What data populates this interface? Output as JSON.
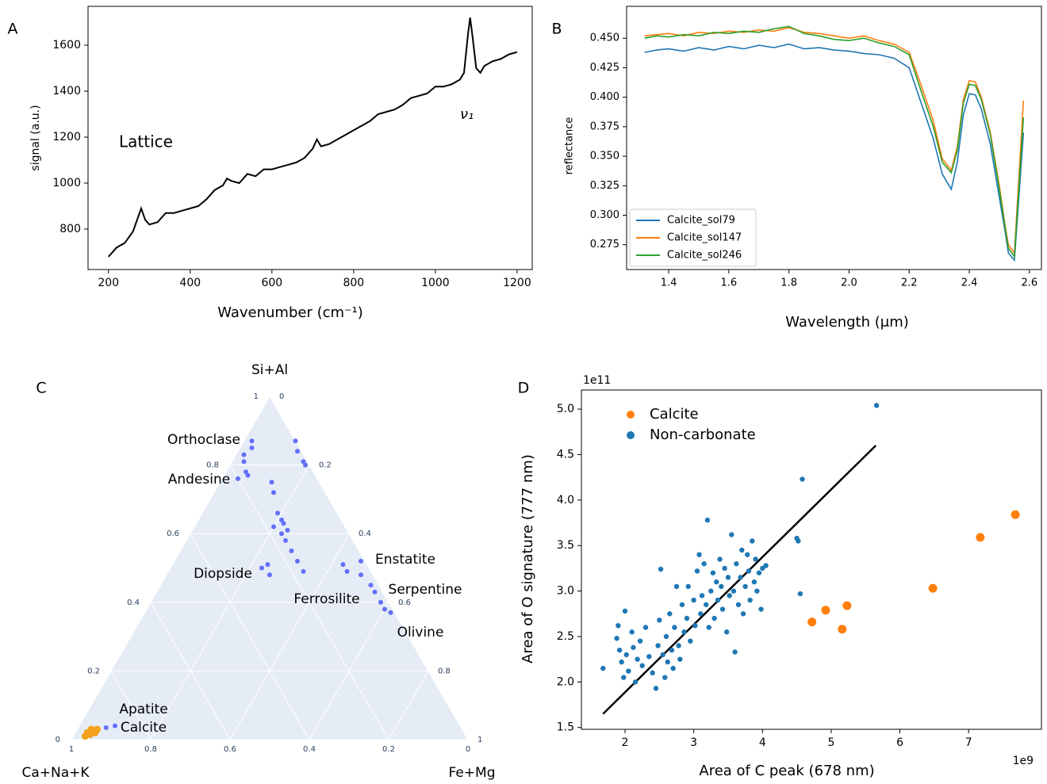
{
  "chart_data": [
    {
      "type": "line",
      "panel_label": "A",
      "xlabel": "Wavenumber (cm⁻¹)",
      "ylabel": "signal (a.u.)",
      "annotations": [
        "Lattice",
        "ν₁"
      ],
      "color": "#000000",
      "x": [
        200,
        220,
        240,
        260,
        280,
        290,
        300,
        320,
        340,
        360,
        380,
        400,
        420,
        440,
        460,
        480,
        490,
        500,
        520,
        540,
        560,
        580,
        600,
        620,
        640,
        660,
        680,
        700,
        710,
        720,
        740,
        760,
        780,
        800,
        820,
        840,
        860,
        880,
        900,
        920,
        940,
        960,
        980,
        1000,
        1020,
        1040,
        1060,
        1070,
        1080,
        1085,
        1090,
        1100,
        1110,
        1120,
        1140,
        1160,
        1180,
        1200
      ],
      "values": [
        680,
        720,
        740,
        790,
        890,
        840,
        820,
        830,
        870,
        870,
        880,
        890,
        900,
        930,
        970,
        990,
        1020,
        1010,
        1000,
        1040,
        1030,
        1060,
        1060,
        1070,
        1080,
        1090,
        1110,
        1150,
        1190,
        1160,
        1170,
        1190,
        1210,
        1230,
        1250,
        1270,
        1300,
        1310,
        1320,
        1340,
        1370,
        1380,
        1390,
        1420,
        1420,
        1430,
        1450,
        1480,
        1650,
        1720,
        1650,
        1500,
        1480,
        1510,
        1530,
        1540,
        1560,
        1570
      ],
      "xlim": [
        150,
        1237
      ],
      "ylim": [
        624,
        1769
      ],
      "xticks": [
        200,
        400,
        600,
        800,
        1000,
        1200
      ],
      "yticks": [
        800,
        1000,
        1200,
        1400,
        1600
      ]
    },
    {
      "type": "line",
      "panel_label": "B",
      "xlabel": "Wavelength (μm)",
      "ylabel": "reflectance",
      "legend": "lower left",
      "x": [
        1.32,
        1.36,
        1.4,
        1.45,
        1.5,
        1.55,
        1.6,
        1.65,
        1.7,
        1.75,
        1.8,
        1.85,
        1.9,
        1.95,
        2.0,
        2.05,
        2.1,
        2.15,
        2.2,
        2.24,
        2.28,
        2.31,
        2.34,
        2.36,
        2.38,
        2.4,
        2.42,
        2.44,
        2.47,
        2.5,
        2.52,
        2.53,
        2.55,
        2.58
      ],
      "series": [
        {
          "name": "Calcite_sol79",
          "color": "#1f77b4",
          "values": [
            0.438,
            0.44,
            0.441,
            0.439,
            0.442,
            0.44,
            0.443,
            0.441,
            0.444,
            0.442,
            0.445,
            0.441,
            0.442,
            0.44,
            0.439,
            0.437,
            0.436,
            0.433,
            0.425,
            0.395,
            0.365,
            0.335,
            0.322,
            0.345,
            0.385,
            0.403,
            0.402,
            0.39,
            0.36,
            0.315,
            0.285,
            0.268,
            0.262,
            0.37
          ]
        },
        {
          "name": "Calcite_sol147",
          "color": "#ff7f0e",
          "values": [
            0.452,
            0.453,
            0.454,
            0.452,
            0.455,
            0.454,
            0.456,
            0.455,
            0.457,
            0.456,
            0.459,
            0.455,
            0.454,
            0.452,
            0.45,
            0.452,
            0.448,
            0.445,
            0.438,
            0.41,
            0.38,
            0.348,
            0.338,
            0.358,
            0.398,
            0.414,
            0.413,
            0.4,
            0.37,
            0.325,
            0.29,
            0.275,
            0.268,
            0.397
          ]
        },
        {
          "name": "Calcite_sol246",
          "color": "#2ca02c",
          "values": [
            0.45,
            0.452,
            0.451,
            0.453,
            0.452,
            0.455,
            0.454,
            0.456,
            0.455,
            0.458,
            0.46,
            0.454,
            0.452,
            0.449,
            0.448,
            0.45,
            0.446,
            0.443,
            0.436,
            0.405,
            0.375,
            0.345,
            0.336,
            0.355,
            0.395,
            0.411,
            0.41,
            0.398,
            0.368,
            0.322,
            0.288,
            0.272,
            0.265,
            0.383
          ]
        }
      ],
      "xlim": [
        1.26,
        2.64
      ],
      "ylim": [
        0.254,
        0.477
      ],
      "xticks": [
        1.4,
        1.6,
        1.8,
        {
          "value": 2,
          "label": "2.0"
        },
        2.2,
        2.4,
        2.6
      ],
      "yticks": [
        0.275,
        {
          "value": 0.3,
          "label": "0.300"
        },
        0.325,
        {
          "value": 0.35,
          "label": "0.350"
        },
        0.375,
        {
          "value": 0.4,
          "label": "0.400"
        },
        0.425,
        {
          "value": 0.45,
          "label": "0.450"
        }
      ]
    },
    {
      "type": "ternary",
      "panel_label": "C",
      "background": "#e5ecf6",
      "aaxis": {
        "title": "Si+Al",
        "ticks": [
          0,
          0.2,
          0.4,
          0.6,
          0.8,
          1
        ]
      },
      "baxis": {
        "title": "Ca+Na+K",
        "ticks": [
          0,
          0.2,
          0.4,
          0.6,
          0.8,
          1
        ]
      },
      "caxis": {
        "title": "Fe+Mg",
        "ticks": [
          0,
          0.2,
          0.4,
          0.6,
          0.8,
          1
        ]
      },
      "annotations": [
        "Orthoclase",
        "Andesine",
        "Diopside",
        "Ferrosilite",
        "Enstatite",
        "Serpentine",
        "Olivine",
        "Apatite",
        "Calcite"
      ],
      "series": [
        {
          "color": "#636efa",
          "a": [
            0.87,
            0.85,
            0.83,
            0.81,
            0.78,
            0.77,
            0.76,
            0.87,
            0.84,
            0.81,
            0.8,
            0.75,
            0.72,
            0.66,
            0.64,
            0.63,
            0.62,
            0.61,
            0.6,
            0.58,
            0.55,
            0.52,
            0.49,
            0.5,
            0.51,
            0.48,
            0.51,
            0.49,
            0.52,
            0.48,
            0.45,
            0.43,
            0.4,
            0.38,
            0.37,
            0.035,
            0.04
          ],
          "b": [
            0.11,
            0.12,
            0.15,
            0.16,
            0.17,
            0.17,
            0.2,
            0,
            0.01,
            0.01,
            0.01,
            0.12,
            0.13,
            0.15,
            0.15,
            0.15,
            0.18,
            0.15,
            0.17,
            0.17,
            0.17,
            0.17,
            0.17,
            0.27,
            0.25,
            0.26,
            0.06,
            0.06,
            0.01,
            0.03,
            0.02,
            0.02,
            0.02,
            0.02,
            0.01,
            0.895,
            0.87
          ],
          "c": [
            0.02,
            0.03,
            0.02,
            0.03,
            0.05,
            0.06,
            0.04,
            0.13,
            0.15,
            0.18,
            0.19,
            0.13,
            0.15,
            0.19,
            0.21,
            0.22,
            0.2,
            0.24,
            0.23,
            0.25,
            0.28,
            0.31,
            0.34,
            0.23,
            0.24,
            0.26,
            0.43,
            0.45,
            0.47,
            0.49,
            0.53,
            0.55,
            0.58,
            0.6,
            0.62,
            0.07,
            0.09
          ]
        },
        {
          "color": "#f5a11c",
          "a": [
            0.02,
            0.025,
            0.03,
            0.015,
            0.03,
            0.02,
            0.01
          ],
          "b": [
            0.95,
            0.935,
            0.935,
            0.945,
            0.92,
            0.93,
            0.96
          ],
          "c": [
            0.03,
            0.04,
            0.035,
            0.04,
            0.05,
            0.05,
            0.03
          ]
        }
      ]
    },
    {
      "type": "scatter",
      "panel_label": "D",
      "xlabel": "Area of C peak (678 nm)",
      "ylabel": "Area of O signature (777 nm)",
      "x_offset": "1e9",
      "y_offset": "1e11",
      "legend": "upper left",
      "series": [
        {
          "name": "Calcite",
          "color": "#ff7f0e",
          "x": [
            4.72,
            4.92,
            5.16,
            5.23,
            6.48,
            7.17,
            7.68
          ],
          "y": [
            2.66,
            2.79,
            2.58,
            2.84,
            3.03,
            3.59,
            3.84
          ]
        },
        {
          "name": "Non-carbonate",
          "color": "#1f77b4",
          "x": [
            1.68,
            1.88,
            1.9,
            1.92,
            1.95,
            1.98,
            2.0,
            2.02,
            2.05,
            2.1,
            2.12,
            2.15,
            2.18,
            2.22,
            2.25,
            2.3,
            2.35,
            2.4,
            2.45,
            2.48,
            2.5,
            2.52,
            2.55,
            2.58,
            2.6,
            2.62,
            2.65,
            2.68,
            2.7,
            2.72,
            2.75,
            2.78,
            2.8,
            2.83,
            2.86,
            2.9,
            2.92,
            2.95,
            3.0,
            3.02,
            3.05,
            3.08,
            3.1,
            3.12,
            3.15,
            3.18,
            3.2,
            3.22,
            3.25,
            3.28,
            3.3,
            3.33,
            3.35,
            3.38,
            3.4,
            3.42,
            3.45,
            3.48,
            3.5,
            3.52,
            3.55,
            3.58,
            3.6,
            3.62,
            3.65,
            3.68,
            3.7,
            3.72,
            3.75,
            3.78,
            3.8,
            3.82,
            3.85,
            3.88,
            3.9,
            3.92,
            3.95,
            3.98,
            4.0,
            4.05,
            4.5,
            4.52,
            4.55,
            4.58,
            5.66
          ],
          "y": [
            2.15,
            2.48,
            2.62,
            2.35,
            2.22,
            2.05,
            2.78,
            2.3,
            2.12,
            2.55,
            2.38,
            2.0,
            2.25,
            2.45,
            2.18,
            2.6,
            2.28,
            2.1,
            1.93,
            2.4,
            2.68,
            3.24,
            2.3,
            2.05,
            2.5,
            2.22,
            2.75,
            2.35,
            2.15,
            2.6,
            3.05,
            2.4,
            2.25,
            2.85,
            2.55,
            2.7,
            3.05,
            2.45,
            2.9,
            2.62,
            3.22,
            3.4,
            2.75,
            2.95,
            3.3,
            2.85,
            3.78,
            2.6,
            3.0,
            3.2,
            2.7,
            3.1,
            2.9,
            3.35,
            3.05,
            2.8,
            3.25,
            2.55,
            3.15,
            2.95,
            3.62,
            3.0,
            2.33,
            3.3,
            2.85,
            3.15,
            3.45,
            2.75,
            3.05,
            3.4,
            3.22,
            2.9,
            3.55,
            3.1,
            3.35,
            3.0,
            3.2,
            2.8,
            3.25,
            3.28,
            3.58,
            3.55,
            2.97,
            4.23,
            5.04
          ]
        }
      ],
      "fit_line": {
        "color": "#000000",
        "x": [
          1.68,
          5.65
        ],
        "y": [
          1.65,
          4.6
        ]
      },
      "xlim": [
        1.365,
        8.06
      ],
      "ylim": [
        1.48,
        5.21
      ],
      "xticks": [
        2,
        3,
        4,
        5,
        6,
        7
      ],
      "yticks": [
        1.5,
        {
          "value": 2,
          "label": "2.0"
        },
        2.5,
        {
          "value": 3,
          "label": "3.0"
        },
        3.5,
        {
          "value": 4,
          "label": "4.0"
        },
        4.5,
        {
          "value": 5,
          "label": "5.0"
        }
      ]
    }
  ]
}
